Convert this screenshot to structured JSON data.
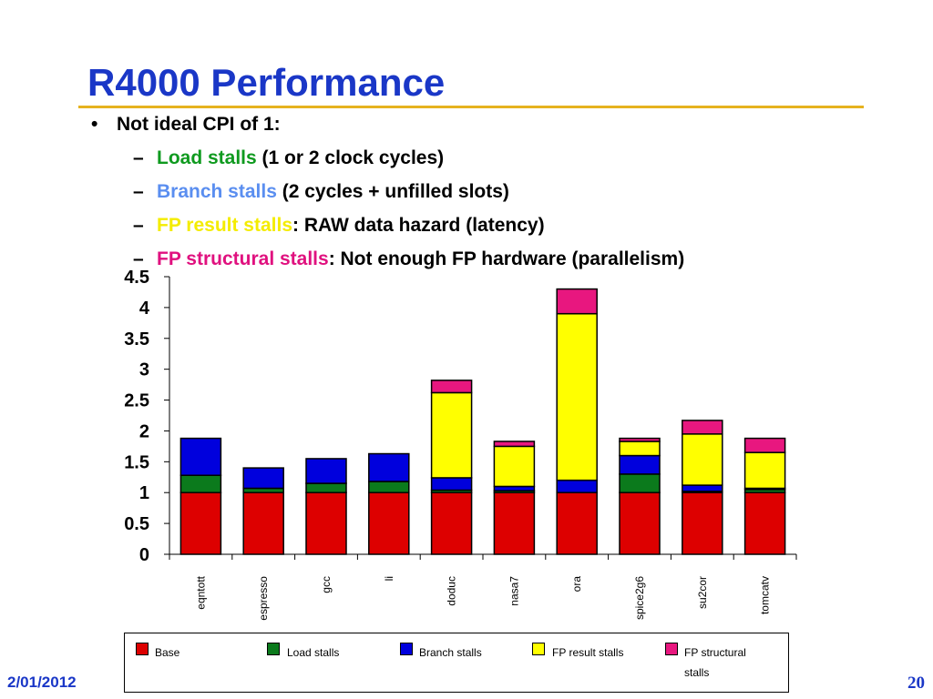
{
  "slide": {
    "title": "R4000 Performance",
    "bullet": "Not ideal CPI of 1:",
    "subs": [
      {
        "dash": "–",
        "highlight": "Load stalls",
        "rest": " (1 or 2 clock cycles)",
        "color": "#0f9a1f"
      },
      {
        "dash": "–",
        "highlight": "Branch stalls",
        "rest": " (2 cycles + unfilled slots)",
        "color": "#5a8ef0"
      },
      {
        "dash": "–",
        "highlight": "FP result stalls",
        "rest": ": RAW data hazard (latency)",
        "color": "#f4ec00"
      },
      {
        "dash": "–",
        "highlight": "FP structural stalls",
        "rest": ": Not enough FP hardware (parallelism)",
        "color": "#e0117f"
      }
    ],
    "footer_date": "2/01/2012",
    "footer_page": "20"
  },
  "chart_data": {
    "type": "bar",
    "stacked": true,
    "categories": [
      "eqntott",
      "espresso",
      "gcc",
      "li",
      "doduc",
      "nasa7",
      "ora",
      "spice2g6",
      "su2cor",
      "tomcatv"
    ],
    "series": [
      {
        "name": "Base",
        "color": "#dd0000",
        "values": [
          1.0,
          1.0,
          1.0,
          1.0,
          1.0,
          1.0,
          1.0,
          1.0,
          1.0,
          1.0
        ]
      },
      {
        "name": "Load stalls",
        "color": "#0b7a1c",
        "values": [
          0.28,
          0.07,
          0.15,
          0.18,
          0.04,
          0.03,
          0.0,
          0.3,
          0.02,
          0.05
        ]
      },
      {
        "name": "Branch stalls",
        "color": "#0000dd",
        "values": [
          0.6,
          0.33,
          0.4,
          0.45,
          0.2,
          0.07,
          0.2,
          0.3,
          0.1,
          0.02
        ]
      },
      {
        "name": "FP result stalls",
        "color": "#ffff00",
        "values": [
          0.0,
          0.0,
          0.0,
          0.0,
          1.38,
          0.65,
          2.7,
          0.23,
          0.83,
          0.58
        ]
      },
      {
        "name": "FP structural stalls",
        "color": "#e8177f",
        "values": [
          0.0,
          0.0,
          0.0,
          0.0,
          0.2,
          0.08,
          0.4,
          0.05,
          0.22,
          0.23
        ]
      }
    ],
    "ylim": [
      0,
      4.5
    ],
    "yticks": [
      "0",
      "0.5",
      "1",
      "1.5",
      "2",
      "2.5",
      "3",
      "3.5",
      "4",
      "4.5"
    ],
    "grid": false,
    "legend_position": "bottom"
  }
}
